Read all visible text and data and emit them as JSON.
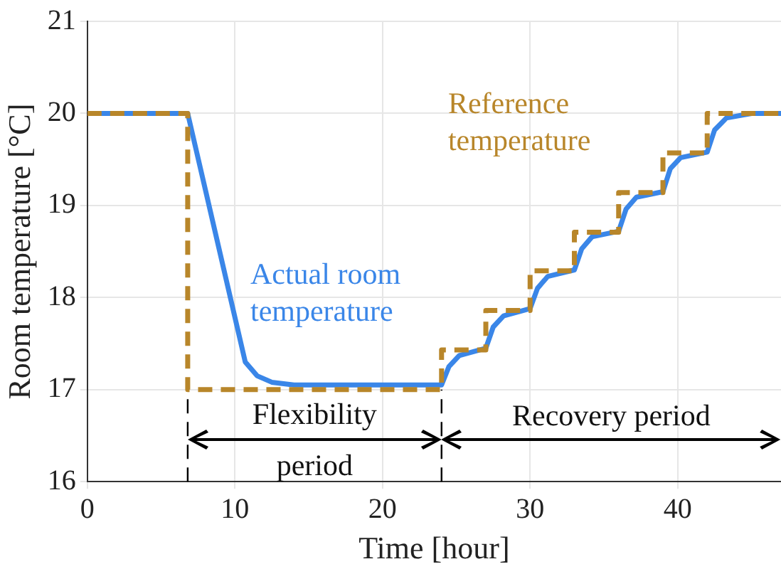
{
  "chart_data": {
    "type": "line",
    "xlabel": "Time [hour]",
    "ylabel": "Room temperature [°C]",
    "xlim": [
      0,
      47
    ],
    "xticks": [
      0,
      10,
      20,
      30,
      40
    ],
    "ylim": [
      16,
      21
    ],
    "yticks": [
      16,
      17,
      18,
      19,
      20,
      21
    ],
    "grid": true,
    "legend": false,
    "marker": "none",
    "series": [
      {
        "name": "Actual room temperature",
        "color": "#3a86e8",
        "line_style": "solid",
        "x": [
          0,
          6.8,
          10.7,
          11.5,
          12.5,
          14,
          16,
          24,
          24.5,
          25.2,
          27,
          27.5,
          28.2,
          30,
          30.5,
          31.2,
          33,
          33.5,
          34.2,
          36,
          36.5,
          37.2,
          39,
          39.5,
          40.2,
          42,
          42.5,
          43.3,
          45,
          47
        ],
        "values": [
          20,
          20,
          17.3,
          17.15,
          17.08,
          17.05,
          17.05,
          17.05,
          17.25,
          17.37,
          17.45,
          17.68,
          17.8,
          17.88,
          18.1,
          18.23,
          18.3,
          18.53,
          18.66,
          18.72,
          18.96,
          19.09,
          19.15,
          19.4,
          19.52,
          19.58,
          19.82,
          19.95,
          20,
          20
        ]
      },
      {
        "name": "Reference temperature",
        "type": "step",
        "color": "#b8862a",
        "line_style": "dashed",
        "x": [
          0,
          6.8,
          24,
          27,
          30,
          33,
          36,
          39,
          42,
          47
        ],
        "values": [
          20,
          17,
          17.43,
          17.86,
          18.29,
          18.71,
          19.14,
          19.57,
          20,
          20
        ]
      }
    ],
    "ref_lines": [
      {
        "axis": "x",
        "value": 6.8,
        "color": "#000000",
        "line_style": "dashed"
      },
      {
        "axis": "x",
        "value": 24,
        "color": "#000000",
        "line_style": "dashed"
      }
    ],
    "annotations": [
      "Flexibility period",
      "Recovery period"
    ]
  }
}
